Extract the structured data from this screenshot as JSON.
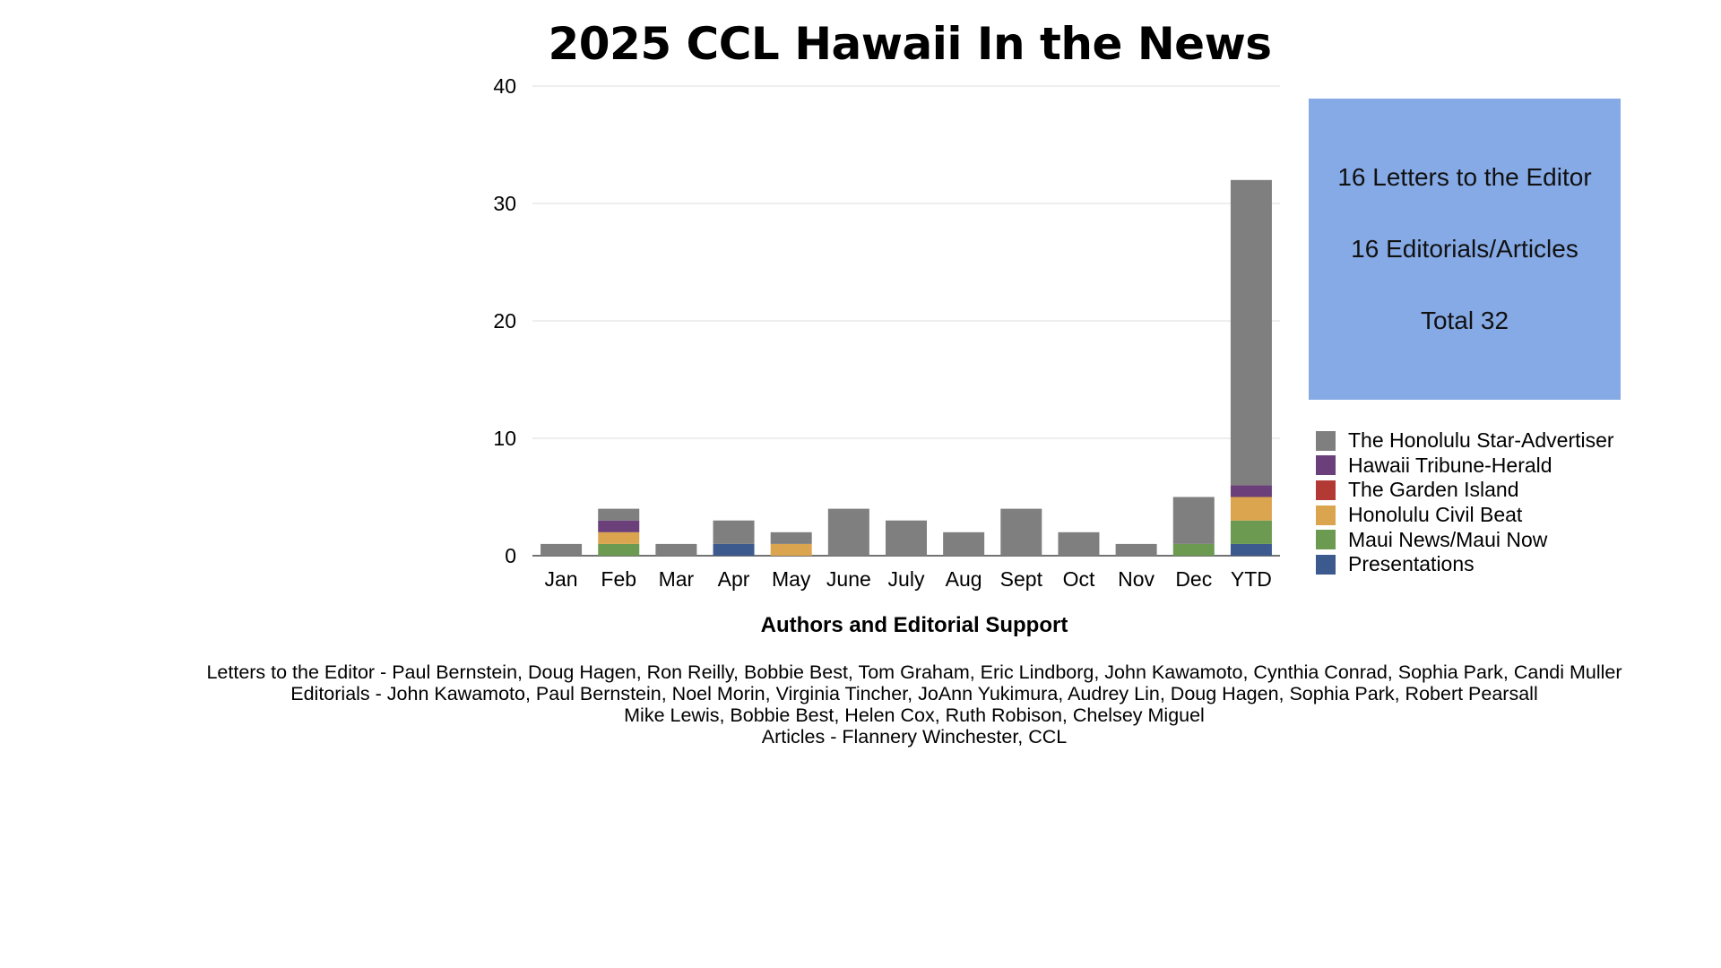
{
  "chart_data": {
    "type": "bar",
    "stacked": true,
    "title": "2025 CCL Hawaii In the News",
    "xlabel": "",
    "ylabel": "",
    "ylim": [
      0,
      40
    ],
    "yticks": [
      0,
      10,
      20,
      30,
      40
    ],
    "grid": true,
    "legend_position": "right",
    "categories": [
      "Jan",
      "Feb",
      "Mar",
      "Apr",
      "May",
      "June",
      "July",
      "Aug",
      "Sept",
      "Oct",
      "Nov",
      "Dec",
      "YTD"
    ],
    "series": [
      {
        "name": "Presentations",
        "color": "#3d5a8e",
        "values": [
          0,
          0,
          0,
          1,
          0,
          0,
          0,
          0,
          0,
          0,
          0,
          0,
          1
        ]
      },
      {
        "name": "Maui News/Maui Now",
        "color": "#6b9a50",
        "values": [
          0,
          1,
          0,
          0,
          0,
          0,
          0,
          0,
          0,
          0,
          0,
          1,
          2
        ]
      },
      {
        "name": "Honolulu Civil Beat",
        "color": "#dba54f",
        "values": [
          0,
          1,
          0,
          0,
          1,
          0,
          0,
          0,
          0,
          0,
          0,
          0,
          2
        ]
      },
      {
        "name": "The Garden Island",
        "color": "#b33a34",
        "values": [
          0,
          0,
          0,
          0,
          0,
          0,
          0,
          0,
          0,
          0,
          0,
          0,
          0
        ]
      },
      {
        "name": "Hawaii Tribune-Herald",
        "color": "#6a3f7a",
        "values": [
          0,
          1,
          0,
          0,
          0,
          0,
          0,
          0,
          0,
          0,
          0,
          0,
          1
        ]
      },
      {
        "name": "The Honolulu Star-Advertiser",
        "color": "#7f7f7f",
        "values": [
          1,
          1,
          1,
          2,
          1,
          4,
          3,
          2,
          4,
          2,
          1,
          4,
          26
        ]
      }
    ]
  },
  "summary": {
    "letters": "16 Letters to the Editor",
    "editorials": "16 Editorials/Articles",
    "total": "Total 32",
    "box_color": "#86aae6"
  },
  "credits": {
    "heading": "Authors and Editorial Support",
    "lines": [
      "Letters to the Editor - Paul Bernstein, Doug Hagen, Ron Reilly, Bobbie Best, Tom Graham, Eric Lindborg, John Kawamoto, Cynthia Conrad, Sophia Park, Candi Muller",
      "Editorials -  John Kawamoto, Paul Bernstein, Noel Morin, Virginia Tincher, JoAnn Yukimura, Audrey Lin, Doug Hagen, Sophia Park, Robert Pearsall",
      "Mike Lewis, Bobbie Best, Helen Cox, Ruth Robison, Chelsey Miguel",
      "Articles - Flannery Winchester, CCL"
    ]
  }
}
